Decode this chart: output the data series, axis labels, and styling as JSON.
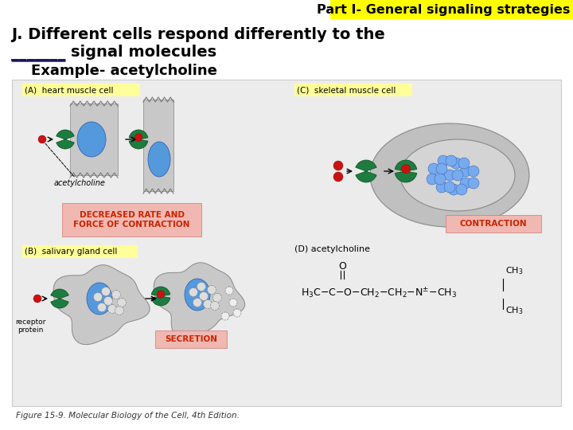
{
  "title": "Part I- General signaling strategies",
  "title_bg": "#ffff00",
  "title_fontsize": 11.5,
  "heading_line1": "J. Different cells respond differently to the",
  "heading_line2": "_______ signal molecules",
  "heading_fontsize": 14,
  "subheading": "    Example- acetylcholine",
  "subheading_fontsize": 13,
  "figure_caption": "Figure 15-9. Molecular Biology of the Cell, 4th Edition.",
  "figure_caption_fontsize": 7.5,
  "bg_color": "#ffffff",
  "diagram_bg": "#ececec",
  "label_highlight_color": "#ffff99",
  "underline_color": "#1a1a6e",
  "result_bg_color": "#f0b8b0",
  "panel_A_label": "(A)  heart muscle cell",
  "panel_B_label": "(B)  salivary gland cell",
  "panel_C_label": "(C)  skeletal muscle cell",
  "panel_D_label": "(D) acetylcholine",
  "result_A": "DECREASED RATE AND\nFORCE OF CONTRACTION",
  "result_B": "SECRETION",
  "result_C": "CONTRACTION"
}
